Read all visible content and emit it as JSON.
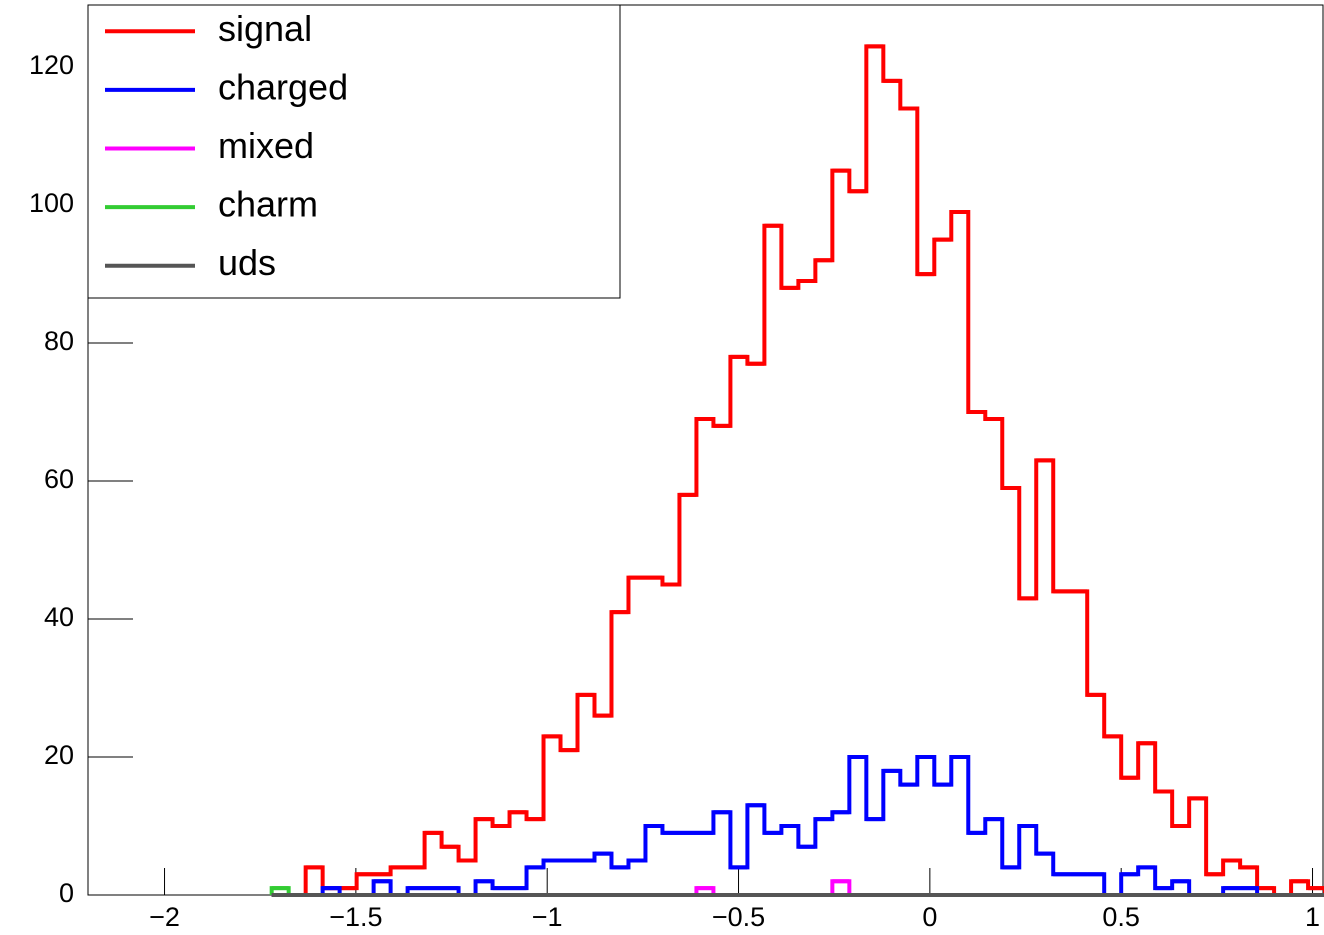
{
  "chart_data": {
    "type": "histogram",
    "bins": [
      -1.72,
      -1.6756,
      -1.6312,
      -1.5868,
      -1.5424,
      -1.498,
      -1.4536,
      -1.4092,
      -1.3648,
      -1.3204,
      -1.276,
      -1.2316,
      -1.1872,
      -1.1428,
      -1.0984,
      -1.054,
      -1.0096,
      -0.9652,
      -0.9208,
      -0.8764,
      -0.832,
      -0.7876,
      -0.7432,
      -0.6988,
      -0.6544,
      -0.61,
      -0.5656,
      -0.5212,
      -0.4768,
      -0.4324,
      -0.388,
      -0.3436,
      -0.2992,
      -0.2548,
      -0.2104,
      -0.166,
      -0.1216,
      -0.0772,
      -0.0328,
      0.0116,
      0.056,
      0.1004,
      0.1448,
      0.1892,
      0.2336,
      0.278,
      0.3224,
      0.3668,
      0.4112,
      0.4556,
      0.5,
      0.5444,
      0.5888,
      0.6332,
      0.6776,
      0.722,
      0.7664,
      0.8108,
      0.8552,
      0.8996,
      0.944,
      0.9884,
      1.0328
    ],
    "series": [
      {
        "name": "signal",
        "color": "#ff0000",
        "values": [
          0,
          0,
          4,
          1,
          1,
          3,
          3,
          4,
          4,
          9,
          7,
          5,
          11,
          10,
          12,
          11,
          23,
          21,
          29,
          26,
          41,
          46,
          46,
          45,
          58,
          69,
          68,
          78,
          77,
          97,
          88,
          89,
          92,
          105,
          102,
          123,
          118,
          114,
          90,
          95,
          99,
          70,
          69,
          59,
          43,
          63,
          44,
          44,
          29,
          23,
          17,
          22,
          15,
          10,
          14,
          3,
          5,
          4,
          1,
          0,
          2,
          1
        ]
      },
      {
        "name": "charged",
        "color": "#0000ff",
        "values": [
          0,
          0,
          0,
          1,
          0,
          0,
          2,
          0,
          1,
          1,
          1,
          0,
          2,
          1,
          1,
          4,
          5,
          5,
          5,
          6,
          4,
          5,
          10,
          9,
          9,
          9,
          12,
          4,
          13,
          9,
          10,
          7,
          11,
          12,
          20,
          11,
          18,
          16,
          20,
          16,
          20,
          9,
          11,
          4,
          10,
          6,
          3,
          3,
          3,
          0,
          3,
          4,
          1,
          2,
          0,
          0,
          1,
          1,
          0,
          0,
          0,
          0
        ]
      },
      {
        "name": "mixed",
        "color": "#ff00ff",
        "values": [
          0,
          0,
          0,
          0,
          0,
          0,
          0,
          0,
          0,
          0,
          0,
          0,
          0,
          0,
          0,
          0,
          0,
          0,
          0,
          0,
          0,
          0,
          0,
          0,
          0,
          1,
          0,
          0,
          0,
          0,
          0,
          0,
          0,
          2,
          0,
          0,
          0,
          0,
          0,
          0,
          0,
          0,
          0,
          0,
          0,
          0,
          0,
          0,
          0,
          0,
          0,
          0,
          0,
          0,
          0,
          0,
          0,
          0,
          0,
          0,
          0,
          0
        ]
      },
      {
        "name": "charm",
        "color": "#33cc33",
        "values": [
          1,
          0,
          0,
          0,
          0,
          0,
          0,
          0,
          0,
          0,
          0,
          0,
          0,
          0,
          0,
          0,
          0,
          0,
          0,
          0,
          0,
          0,
          0,
          0,
          0,
          0,
          0,
          0,
          0,
          0,
          0,
          0,
          0,
          0,
          0,
          0,
          0,
          0,
          0,
          0,
          0,
          0,
          0,
          0,
          0,
          0,
          0,
          0,
          0,
          0,
          0,
          0,
          0,
          0,
          0,
          0,
          0,
          0,
          0,
          0,
          0,
          0
        ]
      },
      {
        "name": "uds",
        "color": "#555555",
        "values": [
          0,
          0,
          0,
          0,
          0,
          0,
          0,
          0,
          0,
          0,
          0,
          0,
          0,
          0,
          0,
          0,
          0,
          0,
          0,
          0,
          0,
          0,
          0,
          0,
          0,
          0,
          0,
          0,
          0,
          0,
          0,
          0,
          0,
          0,
          0,
          0,
          0,
          0,
          0,
          0,
          0,
          0,
          0,
          0,
          0,
          0,
          0,
          0,
          0,
          0,
          0,
          0,
          0,
          0,
          0,
          0,
          0,
          0,
          0,
          0,
          0,
          0
        ]
      }
    ],
    "xlim": [
      -2.2,
      1.03
    ],
    "ylim": [
      0,
      129
    ],
    "xticks": [
      {
        "value": -2,
        "label": "−2"
      },
      {
        "value": -1.5,
        "label": "−1.5"
      },
      {
        "value": -1,
        "label": "−1"
      },
      {
        "value": -0.5,
        "label": "−0.5"
      },
      0,
      0.5,
      1
    ],
    "yticks": [
      0,
      20,
      40,
      60,
      80,
      100,
      120
    ],
    "legend": "top-left"
  }
}
